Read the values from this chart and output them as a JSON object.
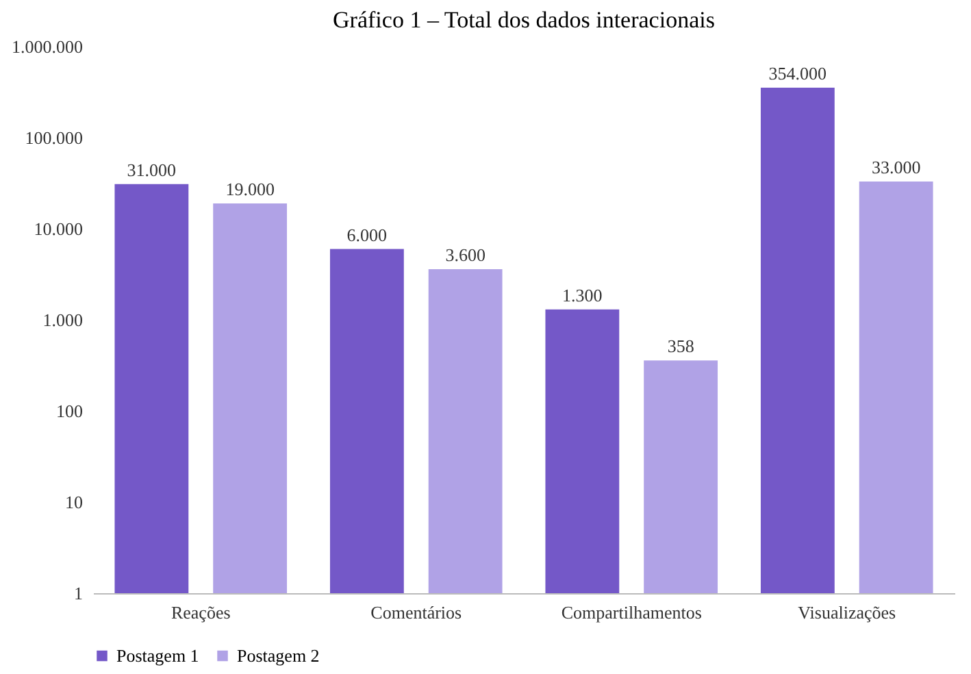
{
  "chart_data": {
    "type": "bar",
    "title": "Gráfico 1 – Total dos dados interacionais",
    "categories": [
      "Reações",
      "Comentários",
      "Compartilhamentos",
      "Visualizações"
    ],
    "series": [
      {
        "name": "Postagem 1",
        "color": "#7458c8",
        "values": [
          31000,
          6000,
          1300,
          354000
        ],
        "value_labels": [
          "31.000",
          "6.000",
          "1.300",
          "354.000"
        ]
      },
      {
        "name": "Postagem 2",
        "color": "#b0a2e6",
        "values": [
          19000,
          3600,
          358,
          33000
        ],
        "value_labels": [
          "19.000",
          "3.600",
          "358",
          "33.000"
        ]
      }
    ],
    "log": true,
    "ylim": [
      1,
      1000000
    ],
    "yticks": [
      1,
      10,
      100,
      {
        "value": 1000,
        "label": "1.000"
      },
      {
        "value": 10000,
        "label": "10.000"
      },
      {
        "value": 100000,
        "label": "100.000"
      },
      {
        "value": 1000000,
        "label": "1.000.000"
      }
    ],
    "legend": "bottom",
    "grid": false
  }
}
